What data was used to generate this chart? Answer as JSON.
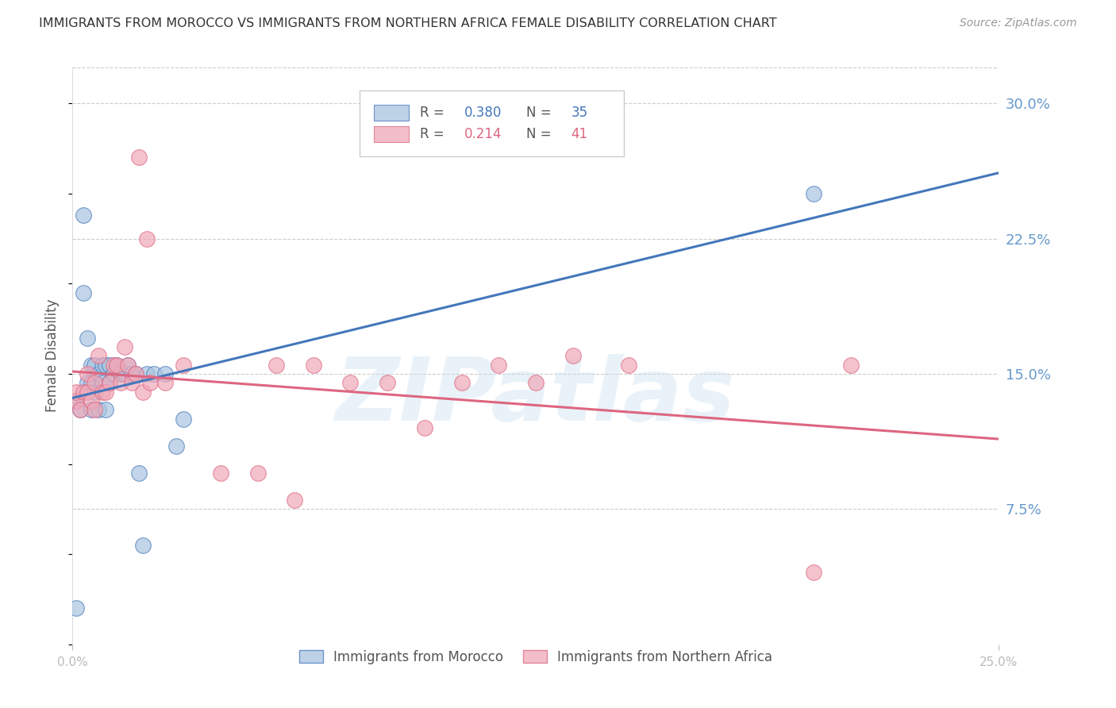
{
  "title": "IMMIGRANTS FROM MOROCCO VS IMMIGRANTS FROM NORTHERN AFRICA FEMALE DISABILITY CORRELATION CHART",
  "source": "Source: ZipAtlas.com",
  "ylabel": "Female Disability",
  "ytick_labels": [
    "30.0%",
    "22.5%",
    "15.0%",
    "7.5%"
  ],
  "ytick_values": [
    0.3,
    0.225,
    0.15,
    0.075
  ],
  "xlim": [
    0.0,
    0.25
  ],
  "ylim": [
    0.0,
    0.32
  ],
  "r_morocco": 0.38,
  "n_morocco": 35,
  "r_north_africa": 0.214,
  "n_north_africa": 41,
  "color_morocco_fill": "#a8c4e0",
  "color_north_africa_fill": "#f0a8b8",
  "color_morocco_line": "#4477BB",
  "color_north_africa_line": "#dd6680",
  "color_axis_labels": "#6699cc",
  "watermark": "ZIPatlas",
  "morocco_x": [
    0.001,
    0.001,
    0.002,
    0.003,
    0.003,
    0.004,
    0.004,
    0.005,
    0.005,
    0.005,
    0.006,
    0.006,
    0.007,
    0.007,
    0.008,
    0.008,
    0.009,
    0.009,
    0.01,
    0.01,
    0.011,
    0.012,
    0.013,
    0.014,
    0.015,
    0.016,
    0.017,
    0.018,
    0.019,
    0.02,
    0.022,
    0.025,
    0.028,
    0.03,
    0.2
  ],
  "morocco_y": [
    0.02,
    0.135,
    0.13,
    0.238,
    0.195,
    0.17,
    0.145,
    0.155,
    0.145,
    0.13,
    0.155,
    0.14,
    0.15,
    0.13,
    0.155,
    0.145,
    0.155,
    0.13,
    0.155,
    0.145,
    0.15,
    0.155,
    0.15,
    0.15,
    0.155,
    0.15,
    0.15,
    0.095,
    0.055,
    0.15,
    0.15,
    0.15,
    0.11,
    0.125,
    0.25
  ],
  "north_africa_x": [
    0.001,
    0.001,
    0.002,
    0.003,
    0.004,
    0.004,
    0.005,
    0.006,
    0.006,
    0.007,
    0.008,
    0.009,
    0.01,
    0.011,
    0.012,
    0.013,
    0.014,
    0.015,
    0.016,
    0.017,
    0.018,
    0.019,
    0.02,
    0.021,
    0.025,
    0.03,
    0.04,
    0.05,
    0.055,
    0.06,
    0.065,
    0.075,
    0.085,
    0.095,
    0.105,
    0.115,
    0.125,
    0.135,
    0.15,
    0.2,
    0.21
  ],
  "north_africa_y": [
    0.135,
    0.14,
    0.13,
    0.14,
    0.14,
    0.15,
    0.135,
    0.145,
    0.13,
    0.16,
    0.14,
    0.14,
    0.145,
    0.155,
    0.155,
    0.145,
    0.165,
    0.155,
    0.145,
    0.15,
    0.27,
    0.14,
    0.225,
    0.145,
    0.145,
    0.155,
    0.095,
    0.095,
    0.155,
    0.08,
    0.155,
    0.145,
    0.145,
    0.12,
    0.145,
    0.155,
    0.145,
    0.16,
    0.155,
    0.04,
    0.155
  ]
}
